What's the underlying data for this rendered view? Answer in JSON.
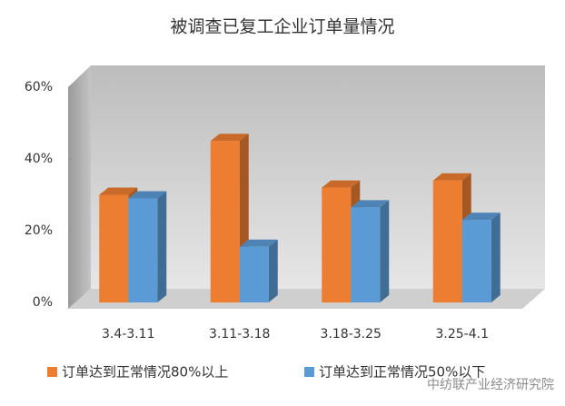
{
  "chart_data": {
    "type": "bar3d",
    "title": "被调查已复工企业订单量情况",
    "categories": [
      "3.4-3.11",
      "3.11-3.18",
      "3.18-3.25",
      "3.25-4.1"
    ],
    "series": [
      {
        "name": "订单达到正常情况80%以上",
        "color": "#ed7d31",
        "values": [
          30,
          45,
          32,
          34
        ]
      },
      {
        "name": "订单达到正常情况50%以下",
        "color": "#5b9bd5",
        "values": [
          29,
          15.5,
          26.5,
          23
        ]
      }
    ],
    "ylim": [
      0,
      60
    ],
    "yticks": [
      {
        "value": 0,
        "label": "0%"
      },
      {
        "value": 20,
        "label": "20%"
      },
      {
        "value": 40,
        "label": "40%"
      },
      {
        "value": 60,
        "label": "60%"
      }
    ],
    "grid": false,
    "legend": "bottom",
    "watermark": "中纺联产业经济研究院"
  }
}
